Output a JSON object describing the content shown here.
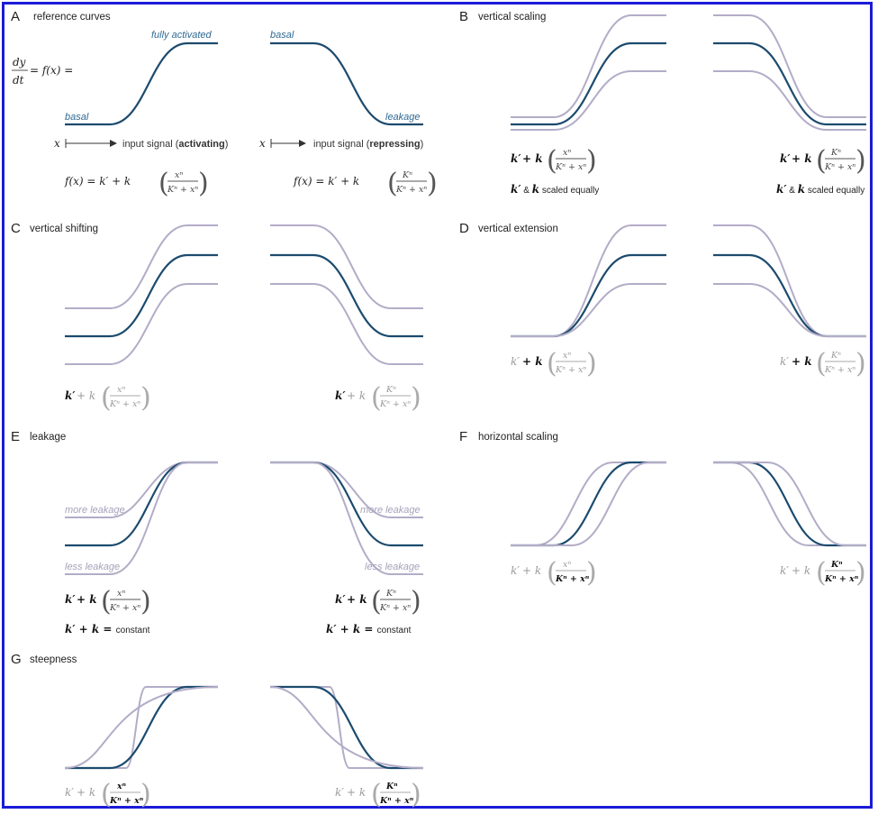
{
  "panels": [
    {
      "letter": "A",
      "title": "reference curves"
    },
    {
      "letter": "B",
      "title": "vertical scaling"
    },
    {
      "letter": "C",
      "title": "vertical shifting"
    },
    {
      "letter": "D",
      "title": "vertical extension"
    },
    {
      "letter": "E",
      "title": "leakage"
    },
    {
      "letter": "F",
      "title": "horizontal scaling"
    },
    {
      "letter": "G",
      "title": "steepness"
    }
  ],
  "panelA": {
    "label_fully_activated": "fully activated",
    "label_basal_left": "basal",
    "label_basal_right": "basal",
    "label_leakage": "leakage",
    "lhs_prefix": "= f(x) =",
    "dy": "dy",
    "dt": "dt",
    "x": "x",
    "signal_prefix": "input signal (",
    "activating": "activating",
    "repressing": "repressing",
    "signal_suffix": ")",
    "fx": "f(x)  =  k′ + k"
  },
  "formula": {
    "k_prime": "k′",
    "plus_k": " + k",
    "num_act": "xⁿ",
    "num_rep": "Kⁿ",
    "den": "Kⁿ + xⁿ"
  },
  "notes": {
    "scaled_k_prime": "k′",
    "scaled_amp": " & ",
    "scaled_k": "k",
    "scaled_text": " scaled equally",
    "const_k_prime": "k′",
    "const_plus": " + ",
    "const_k": "k",
    "const_eq": " = ",
    "const_text": "constant"
  },
  "panelE": {
    "more_leakage": "more leakage",
    "less_leakage": "less leakage"
  },
  "colors": {
    "frame": "#1b1bd8",
    "dark_curve": "#1c4b6e",
    "light_curve": "#b3acc7",
    "annotation": "#2f6a94"
  }
}
